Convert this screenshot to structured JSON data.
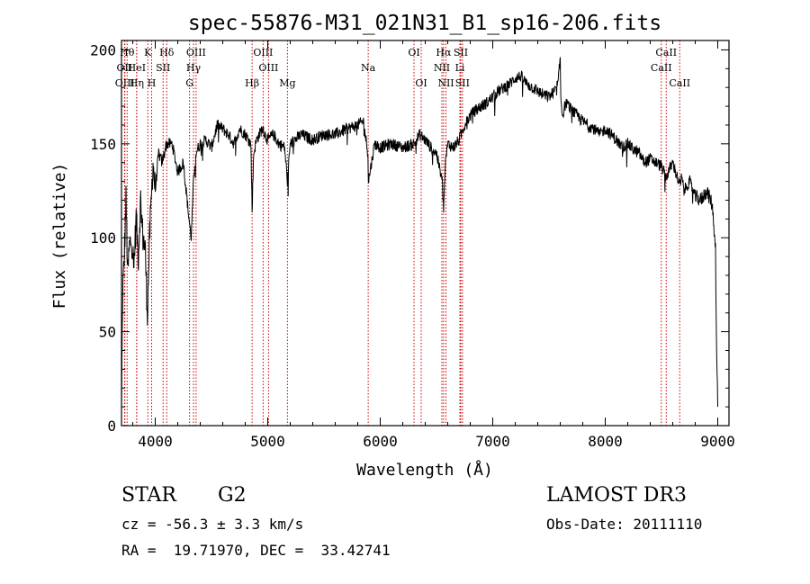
{
  "chart_data": {
    "type": "line",
    "title": "spec-55876-M31_021N31_B1_sp16-206.fits",
    "xlabel": "Wavelength (Å)",
    "ylabel": "Flux (relative)",
    "xlim": [
      3700,
      9100
    ],
    "ylim": [
      0,
      205
    ],
    "xticks": [
      4000,
      5000,
      6000,
      7000,
      8000,
      9000
    ],
    "yticks": [
      0,
      50,
      100,
      150,
      200
    ],
    "series": [
      {
        "name": "spectrum",
        "x": [
          3700,
          3710,
          3725,
          3740,
          3755,
          3770,
          3790,
          3810,
          3830,
          3850,
          3870,
          3890,
          3910,
          3930,
          3950,
          3965,
          3980,
          4000,
          4030,
          4060,
          4100,
          4150,
          4200,
          4250,
          4300,
          4320,
          4340,
          4360,
          4400,
          4450,
          4500,
          4550,
          4600,
          4650,
          4700,
          4750,
          4800,
          4850,
          4861,
          4875,
          4900,
          4950,
          5000,
          5050,
          5100,
          5150,
          5175,
          5200,
          5300,
          5400,
          5500,
          5600,
          5700,
          5800,
          5850,
          5890,
          5895,
          5950,
          6000,
          6100,
          6200,
          6300,
          6350,
          6400,
          6450,
          6500,
          6550,
          6563,
          6580,
          6600,
          6650,
          6700,
          6750,
          6800,
          6850,
          6900,
          6950,
          7000,
          7050,
          7100,
          7150,
          7200,
          7250,
          7300,
          7350,
          7400,
          7450,
          7500,
          7550,
          7580,
          7600,
          7605,
          7620,
          7650,
          7700,
          7750,
          7800,
          7850,
          7900,
          7950,
          8000,
          8050,
          8100,
          8150,
          8200,
          8250,
          8300,
          8350,
          8400,
          8450,
          8500,
          8542,
          8560,
          8600,
          8662,
          8680,
          8700,
          8750,
          8800,
          8850,
          8900,
          8950,
          8980,
          8990,
          9000
        ],
        "y": [
          5,
          70,
          90,
          120,
          80,
          95,
          100,
          85,
          110,
          90,
          120,
          100,
          95,
          60,
          100,
          120,
          140,
          125,
          145,
          140,
          150,
          150,
          135,
          140,
          110,
          100,
          130,
          145,
          150,
          152,
          148,
          160,
          158,
          155,
          150,
          158,
          155,
          150,
          115,
          145,
          152,
          158,
          152,
          155,
          150,
          148,
          130,
          150,
          155,
          152,
          155,
          155,
          158,
          160,
          162,
          145,
          130,
          150,
          148,
          150,
          148,
          150,
          155,
          152,
          148,
          145,
          130,
          115,
          140,
          150,
          148,
          152,
          160,
          165,
          168,
          170,
          172,
          175,
          178,
          180,
          182,
          185,
          186,
          182,
          180,
          178,
          176,
          175,
          178,
          182,
          195,
          175,
          165,
          172,
          168,
          165,
          162,
          160,
          158,
          155,
          158,
          155,
          152,
          148,
          150,
          147,
          145,
          140,
          142,
          140,
          138,
          132,
          135,
          140,
          128,
          132,
          125,
          130,
          122,
          120,
          125,
          118,
          95,
          40,
          10
        ]
      }
    ],
    "lines": [
      {
        "label": "Hθ",
        "wavelength": 3750,
        "row": 1
      },
      {
        "label": "OII",
        "wavelength": 3727,
        "row": 2
      },
      {
        "label": "OIII",
        "wavelength": 3730,
        "row": 3
      },
      {
        "label": "K",
        "wavelength": 3934,
        "row": 1
      },
      {
        "label": "HeI",
        "wavelength": 3835,
        "row": 2
      },
      {
        "label": "Hη",
        "wavelength": 3835,
        "row": 3
      },
      {
        "label": "SII",
        "wavelength": 4070,
        "row": 2
      },
      {
        "label": "H",
        "wavelength": 3968,
        "row": 3
      },
      {
        "label": "Hδ",
        "wavelength": 4102,
        "row": 1
      },
      {
        "label": "OIII",
        "wavelength": 4363,
        "row": 1
      },
      {
        "label": "Hγ",
        "wavelength": 4340,
        "row": 2
      },
      {
        "label": "G",
        "wavelength": 4305,
        "row": 3
      },
      {
        "label": "OIII",
        "wavelength": 4959,
        "row": 1
      },
      {
        "label": "OIII",
        "wavelength": 5007,
        "row": 2
      },
      {
        "label": "Hβ",
        "wavelength": 4861,
        "row": 3
      },
      {
        "label": "Mg",
        "wavelength": 5175,
        "row": 3
      },
      {
        "label": "Na",
        "wavelength": 5893,
        "row": 2
      },
      {
        "label": "OI",
        "wavelength": 6300,
        "row": 1
      },
      {
        "label": "OI",
        "wavelength": 6364,
        "row": 3
      },
      {
        "label": "Hα",
        "wavelength": 6563,
        "row": 1
      },
      {
        "label": "SII",
        "wavelength": 6716,
        "row": 1
      },
      {
        "label": "NII",
        "wavelength": 6548,
        "row": 2
      },
      {
        "label": "Li",
        "wavelength": 6708,
        "row": 2
      },
      {
        "label": "NII",
        "wavelength": 6584,
        "row": 3
      },
      {
        "label": "SII",
        "wavelength": 6731,
        "row": 3
      },
      {
        "label": "CaII",
        "wavelength": 8542,
        "row": 1
      },
      {
        "label": "CaII",
        "wavelength": 8498,
        "row": 2
      },
      {
        "label": "CaII",
        "wavelength": 8662,
        "row": 3
      }
    ]
  },
  "info": {
    "class": "STAR",
    "subclass": "G2",
    "survey": "LAMOST DR3",
    "cz": "cz = -56.3 ± 3.3 km/s",
    "obs_date": "Obs-Date: 20111110",
    "radec": "RA =  19.71970, DEC =  33.42741"
  },
  "colors": {
    "spectrum": "#000000",
    "line_marker": "#cc0000"
  }
}
